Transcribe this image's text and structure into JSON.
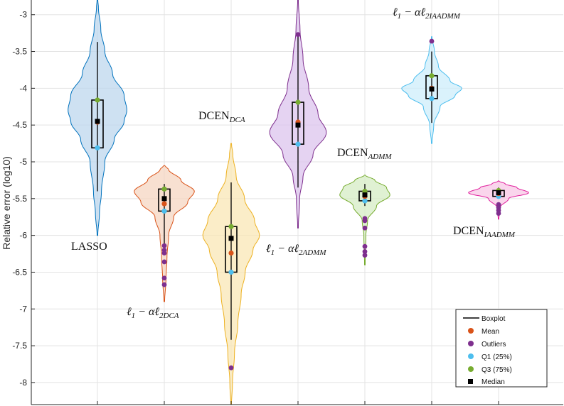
{
  "chart_data": {
    "type": "violin",
    "ylabel": "Relative error (log10)",
    "ylim": [
      -8.3,
      -2.8
    ],
    "yticks": [
      "-3",
      "-3.5",
      "-4",
      "-4.5",
      "-5",
      "-5.5",
      "-6",
      "-6.5",
      "-7",
      "-7.5",
      "-8"
    ],
    "ytick_values": [
      -3,
      -3.5,
      -4,
      -4.5,
      -5,
      -5.5,
      -6,
      -6.5,
      -7,
      -7.5,
      -8
    ],
    "grid": true,
    "legend_position": "bottom-right",
    "legend": {
      "boxplot": "Boxplot",
      "mean": "Mean",
      "outliers": "Outliers",
      "q1": "Q1 (25%)",
      "q3": "Q3 (75%)",
      "median": "Median"
    },
    "colors": {
      "mean": "#d95319",
      "outlier": "#7e2f8e",
      "q1": "#4dbeee",
      "q3": "#77ac30",
      "median": "#000000"
    },
    "series": [
      {
        "label_main": "LASSO",
        "label_sub": "",
        "label_math": false,
        "color": "#0072bd",
        "fill": "#bdd7ee",
        "vmin": -6.0,
        "vmax": -2.8,
        "profile": [
          [
            -6.0,
            0.01
          ],
          [
            -5.7,
            0.06
          ],
          [
            -5.4,
            0.12
          ],
          [
            -5.0,
            0.22
          ],
          [
            -4.7,
            0.5
          ],
          [
            -4.45,
            0.8
          ],
          [
            -4.3,
            0.88
          ],
          [
            -4.1,
            0.8
          ],
          [
            -3.8,
            0.45
          ],
          [
            -3.5,
            0.22
          ],
          [
            -3.2,
            0.1
          ],
          [
            -2.9,
            0.03
          ],
          [
            -2.8,
            0.01
          ]
        ],
        "whisker": [
          -5.4,
          -3.37
        ],
        "q1": -4.81,
        "q3": -4.16,
        "median": -4.45,
        "mean": -4.46,
        "outliers": []
      },
      {
        "label_main": "ℓ",
        "label_sub": "1",
        "label_rest": " − αℓ",
        "label_sub2": "2DCA",
        "label_math": true,
        "color": "#d95319",
        "fill": "#f6d5c2",
        "vmin": -6.9,
        "vmax": -5.05,
        "profile": [
          [
            -6.9,
            0.01
          ],
          [
            -6.6,
            0.05
          ],
          [
            -6.3,
            0.08
          ],
          [
            -6.0,
            0.13
          ],
          [
            -5.75,
            0.28
          ],
          [
            -5.55,
            0.7
          ],
          [
            -5.4,
            0.9
          ],
          [
            -5.25,
            0.5
          ],
          [
            -5.1,
            0.12
          ],
          [
            -5.05,
            0.01
          ]
        ],
        "whisker": [
          -6.15,
          -5.3
        ],
        "q1": -5.67,
        "q3": -5.37,
        "median": -5.5,
        "mean": -5.57,
        "outliers": [
          -6.14,
          -6.2,
          -6.24,
          -6.36,
          -6.58,
          -6.67
        ]
      },
      {
        "label_main": "DCEN",
        "label_sub": "DCA",
        "label_math": false,
        "color": "#edb120",
        "fill": "#fae7b6",
        "vmin": -8.3,
        "vmax": -4.75,
        "profile": [
          [
            -8.3,
            0.01
          ],
          [
            -8.0,
            0.04
          ],
          [
            -7.6,
            0.1
          ],
          [
            -7.2,
            0.2
          ],
          [
            -6.8,
            0.3
          ],
          [
            -6.5,
            0.42
          ],
          [
            -6.2,
            0.65
          ],
          [
            -6.0,
            0.85
          ],
          [
            -5.8,
            0.7
          ],
          [
            -5.5,
            0.4
          ],
          [
            -5.2,
            0.15
          ],
          [
            -4.9,
            0.05
          ],
          [
            -4.75,
            0.01
          ]
        ],
        "whisker": [
          -7.42,
          -5.28
        ],
        "q1": -6.5,
        "q3": -5.88,
        "median": -6.04,
        "mean": -6.24,
        "outliers": [
          -7.8
        ]
      },
      {
        "label_main": "ℓ",
        "label_sub": "1",
        "label_rest": " − αℓ",
        "label_sub2": "2ADMM",
        "label_math": true,
        "color": "#7e2f8e",
        "fill": "#dcc4ee",
        "vmin": -5.9,
        "vmax": -2.8,
        "profile": [
          [
            -5.9,
            0.01
          ],
          [
            -5.5,
            0.05
          ],
          [
            -5.2,
            0.15
          ],
          [
            -4.9,
            0.45
          ],
          [
            -4.6,
            0.85
          ],
          [
            -4.35,
            0.6
          ],
          [
            -4.0,
            0.32
          ],
          [
            -3.6,
            0.15
          ],
          [
            -3.2,
            0.06
          ],
          [
            -2.8,
            0.01
          ]
        ],
        "whisker": [
          -5.35,
          -3.27
        ],
        "q1": -4.76,
        "q3": -4.19,
        "median": -4.5,
        "mean": -4.46,
        "outliers": [
          -3.27
        ]
      },
      {
        "label_main": "DCEN",
        "label_sub": "ADMM",
        "label_math": false,
        "color": "#77ac30",
        "fill": "#d5ecc4",
        "vmin": -6.4,
        "vmax": -5.18,
        "profile": [
          [
            -6.4,
            0.01
          ],
          [
            -6.0,
            0.03
          ],
          [
            -5.8,
            0.08
          ],
          [
            -5.6,
            0.35
          ],
          [
            -5.45,
            0.75
          ],
          [
            -5.35,
            0.65
          ],
          [
            -5.25,
            0.3
          ],
          [
            -5.18,
            0.01
          ]
        ],
        "whisker": [
          -5.6,
          -5.3
        ],
        "q1": -5.53,
        "q3": -5.4,
        "median": -5.45,
        "mean": -5.47,
        "outliers": [
          -5.77,
          -5.8,
          -5.9,
          -6.15,
          -6.22,
          -6.27
        ]
      },
      {
        "label_main": "ℓ",
        "label_sub": "1",
        "label_rest": " − αℓ",
        "label_sub2": "2IAADMM",
        "label_math": true,
        "color": "#4dbeee",
        "fill": "#cdeefb",
        "vmin": -4.75,
        "vmax": -3.3,
        "profile": [
          [
            -4.75,
            0.01
          ],
          [
            -4.5,
            0.06
          ],
          [
            -4.25,
            0.25
          ],
          [
            -4.1,
            0.7
          ],
          [
            -4.0,
            0.9
          ],
          [
            -3.9,
            0.55
          ],
          [
            -3.7,
            0.2
          ],
          [
            -3.5,
            0.08
          ],
          [
            -3.3,
            0.01
          ]
        ],
        "whisker": [
          -4.47,
          -3.5
        ],
        "q1": -4.14,
        "q3": -3.83,
        "median": -4.01,
        "mean": -4.0,
        "outliers": [
          -3.36
        ]
      },
      {
        "label_main": "DCEN",
        "label_sub": "IAADMM",
        "label_math": false,
        "color": "#e01f9d",
        "fill": "#f8c7e5",
        "vmin": -5.78,
        "vmax": -5.26,
        "profile": [
          [
            -5.78,
            0.01
          ],
          [
            -5.62,
            0.05
          ],
          [
            -5.5,
            0.3
          ],
          [
            -5.42,
            0.9
          ],
          [
            -5.35,
            0.55
          ],
          [
            -5.3,
            0.2
          ],
          [
            -5.26,
            0.01
          ]
        ],
        "whisker": [
          -5.5,
          -5.35
        ],
        "q1": -5.47,
        "q3": -5.39,
        "median": -5.42,
        "mean": -5.43,
        "outliers": [
          -5.58,
          -5.62,
          -5.66,
          -5.7
        ]
      }
    ]
  }
}
